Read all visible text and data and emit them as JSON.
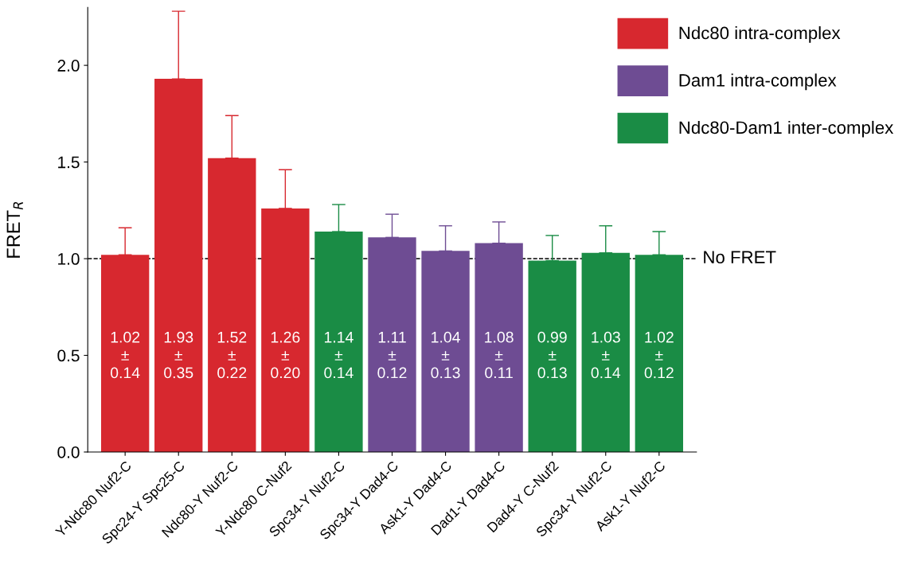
{
  "chart_data": {
    "type": "bar",
    "categories": [
      "Y-Ndc80 Nuf2-C",
      "Spc24-Y Spc25-C",
      "Ndc80-Y Nuf2-C",
      "Y-Ndc80 C-Nuf2",
      "Spc34-Y Nuf2-C",
      "Spc34-Y Dad4-C",
      "Ask1-Y Dad4-C",
      "Dad1-Y Dad4-C",
      "Dad4-Y C-Nuf2",
      "Spc34-Y Nuf2-C",
      "Ask1-Y Nuf2-C"
    ],
    "series": [
      {
        "name": "Ndc80 intra-complex",
        "color": "#d7282f",
        "values": [
          1.02,
          1.93,
          1.52,
          1.26,
          null,
          null,
          null,
          null,
          null,
          null,
          null
        ],
        "errors": [
          [
            1.02,
            1.16
          ],
          [
            1.93,
            2.28
          ],
          [
            1.52,
            1.74
          ],
          [
            1.26,
            1.46
          ],
          null,
          null,
          null,
          null,
          null,
          null,
          null
        ],
        "value_labels": [
          "1.02\n±\n0.14",
          "1.93\n±\n0.35",
          "1.52\n±\n0.22",
          "1.26\n±\n0.20",
          null,
          null,
          null,
          null,
          null,
          null,
          null
        ]
      },
      {
        "name": "Dam1 intra-complex",
        "color": "#6e4c93",
        "values": [
          null,
          null,
          null,
          null,
          null,
          1.11,
          1.04,
          1.08,
          null,
          null,
          null
        ],
        "errors": [
          null,
          null,
          null,
          null,
          null,
          [
            1.11,
            1.23
          ],
          [
            1.04,
            1.17
          ],
          [
            1.08,
            1.19
          ],
          null,
          null,
          null
        ],
        "value_labels": [
          null,
          null,
          null,
          null,
          null,
          "1.11\n±\n0.12",
          "1.04\n±\n0.13",
          "1.08\n±\n0.11",
          null,
          null,
          null
        ]
      },
      {
        "name": "Ndc80-Dam1 inter-complex",
        "color": "#1a8c45",
        "values": [
          null,
          null,
          null,
          null,
          1.14,
          null,
          null,
          null,
          0.99,
          1.03,
          1.02
        ],
        "errors": [
          null,
          null,
          null,
          null,
          [
            1.14,
            1.28
          ],
          null,
          null,
          null,
          [
            0.99,
            1.12
          ],
          [
            1.03,
            1.17
          ],
          [
            1.02,
            1.14
          ]
        ],
        "value_labels": [
          null,
          null,
          null,
          null,
          "1.14\n±\n0.14",
          null,
          null,
          null,
          "0.99\n±\n0.13",
          "1.03\n±\n0.14",
          "1.02\n±\n0.12"
        ]
      }
    ],
    "ylabel": "FRET$_{R}$",
    "ylim": [
      0,
      2.3
    ],
    "yticks": [
      {
        "value": 0,
        "label": "0.0"
      },
      {
        "value": 0.5,
        "label": "0.5"
      },
      {
        "value": 1,
        "label": "1.0"
      },
      {
        "value": 1.5,
        "label": "1.5"
      },
      {
        "value": 2,
        "label": "2.0"
      }
    ],
    "ref_lines": [
      {
        "axis": "y",
        "value": 1,
        "label": "No FRET",
        "color": "#000000",
        "line_style": "dashed"
      }
    ],
    "grid": false,
    "legend": "top right"
  }
}
